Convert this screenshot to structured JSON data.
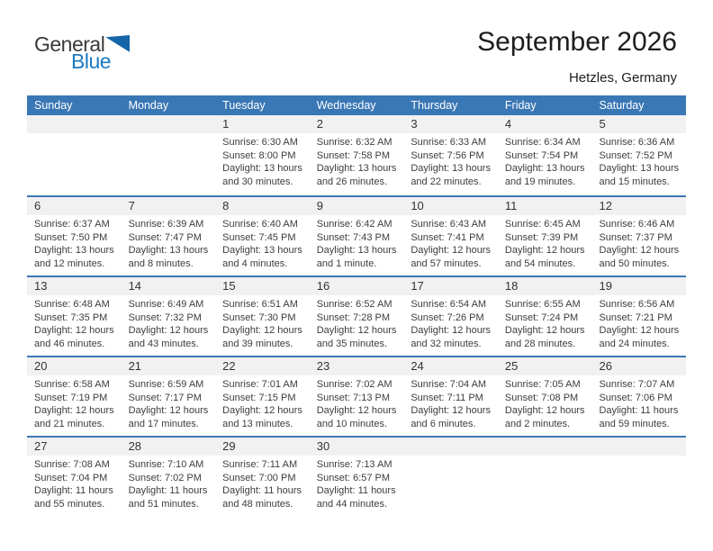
{
  "logo": {
    "general": "General",
    "blue": "Blue"
  },
  "title": "September 2026",
  "location": "Hetzles, Germany",
  "weekdays": [
    "Sunday",
    "Monday",
    "Tuesday",
    "Wednesday",
    "Thursday",
    "Friday",
    "Saturday"
  ],
  "colors": {
    "header_bg": "#3a77b5",
    "week_border": "#3a77b5",
    "day_band_bg": "#f1f1f1",
    "logo_blue": "#1b79c1",
    "logo_triangle": "#1566a8",
    "text_dark": "#1d1d1d",
    "cell_text": "#3d3d3d"
  },
  "weeks": [
    [
      null,
      null,
      {
        "day": "1",
        "sunrise": "Sunrise: 6:30 AM",
        "sunset": "Sunset: 8:00 PM",
        "daylight": "Daylight: 13 hours and 30 minutes."
      },
      {
        "day": "2",
        "sunrise": "Sunrise: 6:32 AM",
        "sunset": "Sunset: 7:58 PM",
        "daylight": "Daylight: 13 hours and 26 minutes."
      },
      {
        "day": "3",
        "sunrise": "Sunrise: 6:33 AM",
        "sunset": "Sunset: 7:56 PM",
        "daylight": "Daylight: 13 hours and 22 minutes."
      },
      {
        "day": "4",
        "sunrise": "Sunrise: 6:34 AM",
        "sunset": "Sunset: 7:54 PM",
        "daylight": "Daylight: 13 hours and 19 minutes."
      },
      {
        "day": "5",
        "sunrise": "Sunrise: 6:36 AM",
        "sunset": "Sunset: 7:52 PM",
        "daylight": "Daylight: 13 hours and 15 minutes."
      }
    ],
    [
      {
        "day": "6",
        "sunrise": "Sunrise: 6:37 AM",
        "sunset": "Sunset: 7:50 PM",
        "daylight": "Daylight: 13 hours and 12 minutes."
      },
      {
        "day": "7",
        "sunrise": "Sunrise: 6:39 AM",
        "sunset": "Sunset: 7:47 PM",
        "daylight": "Daylight: 13 hours and 8 minutes."
      },
      {
        "day": "8",
        "sunrise": "Sunrise: 6:40 AM",
        "sunset": "Sunset: 7:45 PM",
        "daylight": "Daylight: 13 hours and 4 minutes."
      },
      {
        "day": "9",
        "sunrise": "Sunrise: 6:42 AM",
        "sunset": "Sunset: 7:43 PM",
        "daylight": "Daylight: 13 hours and 1 minute."
      },
      {
        "day": "10",
        "sunrise": "Sunrise: 6:43 AM",
        "sunset": "Sunset: 7:41 PM",
        "daylight": "Daylight: 12 hours and 57 minutes."
      },
      {
        "day": "11",
        "sunrise": "Sunrise: 6:45 AM",
        "sunset": "Sunset: 7:39 PM",
        "daylight": "Daylight: 12 hours and 54 minutes."
      },
      {
        "day": "12",
        "sunrise": "Sunrise: 6:46 AM",
        "sunset": "Sunset: 7:37 PM",
        "daylight": "Daylight: 12 hours and 50 minutes."
      }
    ],
    [
      {
        "day": "13",
        "sunrise": "Sunrise: 6:48 AM",
        "sunset": "Sunset: 7:35 PM",
        "daylight": "Daylight: 12 hours and 46 minutes."
      },
      {
        "day": "14",
        "sunrise": "Sunrise: 6:49 AM",
        "sunset": "Sunset: 7:32 PM",
        "daylight": "Daylight: 12 hours and 43 minutes."
      },
      {
        "day": "15",
        "sunrise": "Sunrise: 6:51 AM",
        "sunset": "Sunset: 7:30 PM",
        "daylight": "Daylight: 12 hours and 39 minutes."
      },
      {
        "day": "16",
        "sunrise": "Sunrise: 6:52 AM",
        "sunset": "Sunset: 7:28 PM",
        "daylight": "Daylight: 12 hours and 35 minutes."
      },
      {
        "day": "17",
        "sunrise": "Sunrise: 6:54 AM",
        "sunset": "Sunset: 7:26 PM",
        "daylight": "Daylight: 12 hours and 32 minutes."
      },
      {
        "day": "18",
        "sunrise": "Sunrise: 6:55 AM",
        "sunset": "Sunset: 7:24 PM",
        "daylight": "Daylight: 12 hours and 28 minutes."
      },
      {
        "day": "19",
        "sunrise": "Sunrise: 6:56 AM",
        "sunset": "Sunset: 7:21 PM",
        "daylight": "Daylight: 12 hours and 24 minutes."
      }
    ],
    [
      {
        "day": "20",
        "sunrise": "Sunrise: 6:58 AM",
        "sunset": "Sunset: 7:19 PM",
        "daylight": "Daylight: 12 hours and 21 minutes."
      },
      {
        "day": "21",
        "sunrise": "Sunrise: 6:59 AM",
        "sunset": "Sunset: 7:17 PM",
        "daylight": "Daylight: 12 hours and 17 minutes."
      },
      {
        "day": "22",
        "sunrise": "Sunrise: 7:01 AM",
        "sunset": "Sunset: 7:15 PM",
        "daylight": "Daylight: 12 hours and 13 minutes."
      },
      {
        "day": "23",
        "sunrise": "Sunrise: 7:02 AM",
        "sunset": "Sunset: 7:13 PM",
        "daylight": "Daylight: 12 hours and 10 minutes."
      },
      {
        "day": "24",
        "sunrise": "Sunrise: 7:04 AM",
        "sunset": "Sunset: 7:11 PM",
        "daylight": "Daylight: 12 hours and 6 minutes."
      },
      {
        "day": "25",
        "sunrise": "Sunrise: 7:05 AM",
        "sunset": "Sunset: 7:08 PM",
        "daylight": "Daylight: 12 hours and 2 minutes."
      },
      {
        "day": "26",
        "sunrise": "Sunrise: 7:07 AM",
        "sunset": "Sunset: 7:06 PM",
        "daylight": "Daylight: 11 hours and 59 minutes."
      }
    ],
    [
      {
        "day": "27",
        "sunrise": "Sunrise: 7:08 AM",
        "sunset": "Sunset: 7:04 PM",
        "daylight": "Daylight: 11 hours and 55 minutes."
      },
      {
        "day": "28",
        "sunrise": "Sunrise: 7:10 AM",
        "sunset": "Sunset: 7:02 PM",
        "daylight": "Daylight: 11 hours and 51 minutes."
      },
      {
        "day": "29",
        "sunrise": "Sunrise: 7:11 AM",
        "sunset": "Sunset: 7:00 PM",
        "daylight": "Daylight: 11 hours and 48 minutes."
      },
      {
        "day": "30",
        "sunrise": "Sunrise: 7:13 AM",
        "sunset": "Sunset: 6:57 PM",
        "daylight": "Daylight: 11 hours and 44 minutes."
      },
      null,
      null,
      null
    ]
  ]
}
